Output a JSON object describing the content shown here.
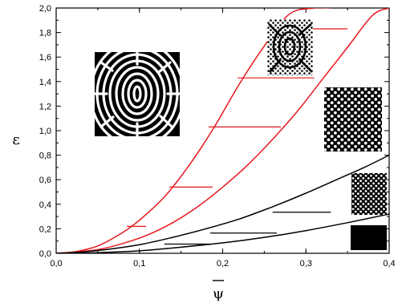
{
  "chart_data": {
    "type": "line",
    "xlabel": "ψ",
    "xlabel_overbar": true,
    "ylabel": "ε",
    "xlim": [
      0,
      0.4
    ],
    "ylim": [
      0,
      2.0
    ],
    "x_ticks": [
      "0,0",
      "0,1",
      "0,2",
      "0,3",
      "0,4"
    ],
    "y_ticks": [
      "0,0",
      "0,2",
      "0,4",
      "0,6",
      "0,8",
      "1,0",
      "1,2",
      "1,4",
      "1,6",
      "1,8",
      "2,0"
    ],
    "grid": false,
    "colors": {
      "red": "#e8181e",
      "black": "#000000"
    },
    "series": [
      {
        "color": "#e8181e",
        "x": [
          0.0,
          0.02,
          0.05,
          0.08,
          0.1,
          0.13,
          0.16,
          0.19,
          0.22,
          0.25,
          0.28,
          0.31,
          0.33
        ],
        "y": [
          0.0,
          0.01,
          0.06,
          0.17,
          0.27,
          0.46,
          0.72,
          1.03,
          1.38,
          1.69,
          1.95,
          2.0,
          2.0
        ]
      },
      {
        "color": "#e8181e",
        "x": [
          0.0,
          0.02,
          0.05,
          0.08,
          0.11,
          0.14,
          0.17,
          0.2,
          0.23,
          0.26,
          0.29,
          0.32,
          0.35,
          0.38,
          0.4
        ],
        "y": [
          0.0,
          0.01,
          0.03,
          0.08,
          0.15,
          0.25,
          0.38,
          0.54,
          0.72,
          0.93,
          1.16,
          1.42,
          1.68,
          1.94,
          2.0
        ]
      },
      {
        "color": "#000000",
        "x": [
          0.0,
          0.03,
          0.06,
          0.1,
          0.14,
          0.18,
          0.22,
          0.26,
          0.3,
          0.34,
          0.37,
          0.4
        ],
        "y": [
          0.0,
          0.01,
          0.03,
          0.07,
          0.13,
          0.2,
          0.28,
          0.38,
          0.49,
          0.61,
          0.7,
          0.8
        ]
      },
      {
        "color": "#000000",
        "x": [
          0.0,
          0.05,
          0.1,
          0.15,
          0.2,
          0.25,
          0.3,
          0.35,
          0.4
        ],
        "y": [
          0.0,
          0.005,
          0.02,
          0.05,
          0.085,
          0.13,
          0.185,
          0.25,
          0.32
        ]
      }
    ],
    "tie_lines": [
      {
        "color": "#e8181e",
        "x1": 0.085,
        "x2": 0.108,
        "y": 0.22
      },
      {
        "color": "#e8181e",
        "x1": 0.136,
        "x2": 0.188,
        "y": 0.54
      },
      {
        "color": "#e8181e",
        "x1": 0.183,
        "x2": 0.27,
        "y": 1.03
      },
      {
        "color": "#e8181e",
        "x1": 0.218,
        "x2": 0.31,
        "y": 1.43
      },
      {
        "color": "#e8181e",
        "x1": 0.253,
        "x2": 0.35,
        "y": 1.83
      },
      {
        "color": "#000000",
        "x1": 0.13,
        "x2": 0.186,
        "y": 0.075
      },
      {
        "color": "#000000",
        "x1": 0.185,
        "x2": 0.265,
        "y": 0.165
      },
      {
        "color": "#000000",
        "x1": 0.26,
        "x2": 0.33,
        "y": 0.335
      }
    ],
    "insets": [
      {
        "name": "labyrinth-pattern-inset",
        "pattern": "labyrinth"
      },
      {
        "name": "mixed-stripe-hex-inset",
        "pattern": "mixed"
      },
      {
        "name": "hexagonal-pattern-inset",
        "pattern": "hexagonal"
      },
      {
        "name": "sparse-hexagonal-inset",
        "pattern": "hexagonal-small"
      },
      {
        "name": "uniform-black-inset",
        "pattern": "uniform"
      }
    ]
  }
}
